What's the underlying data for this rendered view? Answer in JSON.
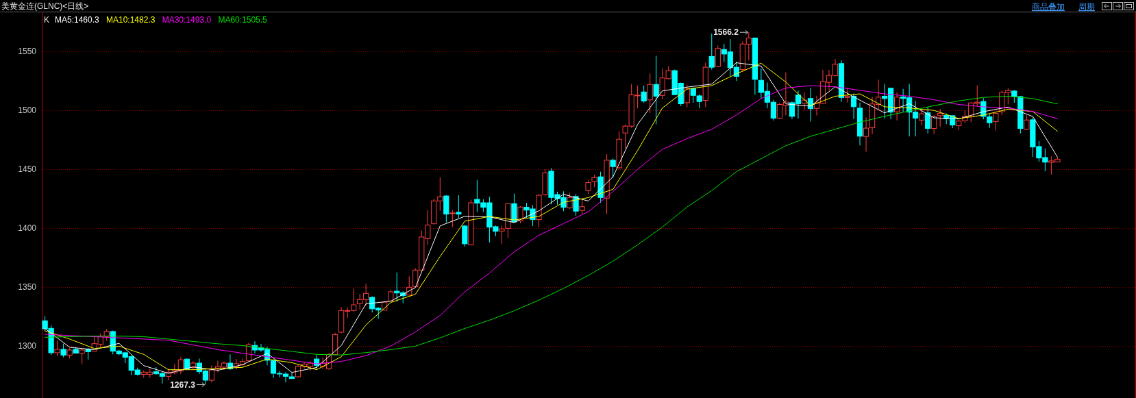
{
  "chart_data": {
    "type": "candlestick",
    "title": "美黄金连(GLNC)<日线>",
    "legend_title": "K",
    "legend": "top left",
    "grid": "y",
    "tick_labels": "y",
    "ylim": [
      1256,
      1582
    ],
    "yticks": [
      1300,
      1350,
      1400,
      1450,
      1500,
      1550
    ],
    "annotations": [
      "商品叠加",
      "周期",
      "1566.2",
      "1267.3"
    ],
    "categories": [
      null,
      null,
      null,
      null,
      null,
      null,
      null,
      null,
      null,
      null,
      null,
      null,
      null,
      null,
      null,
      null,
      null,
      null,
      null,
      null,
      null,
      null,
      null,
      null,
      null,
      null,
      null,
      null,
      null,
      null,
      null,
      null,
      null,
      null,
      null,
      null,
      null,
      null,
      null,
      null,
      null,
      null,
      null,
      null,
      null,
      null,
      null,
      null,
      null,
      null,
      null,
      null,
      null,
      null,
      null,
      null,
      null,
      null,
      null,
      null,
      null,
      null,
      null,
      null,
      null,
      null,
      null,
      null,
      null,
      null,
      null,
      null,
      null,
      null,
      null,
      null,
      null,
      null,
      null,
      null,
      null,
      null,
      null,
      null,
      null,
      null,
      null,
      null,
      null,
      null,
      null,
      null,
      null,
      null,
      null,
      null,
      null,
      null,
      null,
      null,
      null,
      null,
      null,
      null,
      null,
      null,
      null,
      null,
      null,
      null,
      null,
      null,
      null,
      null,
      null,
      null,
      null,
      null,
      null,
      null,
      null,
      null,
      null,
      null,
      null,
      null,
      null,
      null,
      null,
      null,
      null,
      null,
      null,
      null,
      null,
      null,
      null,
      null,
      null,
      null,
      null,
      null,
      null,
      null,
      null,
      null,
      null,
      null,
      null,
      null,
      null,
      null,
      null,
      null,
      null,
      null,
      null,
      null,
      null,
      null,
      null,
      null,
      null,
      null,
      null
    ],
    "ohlc": [
      [
        1321.5,
        1325.4,
        1312.8,
        1314.7
      ],
      [
        1315.1,
        1317.6,
        1292.4,
        1294.4
      ],
      [
        1294.4,
        1304.6,
        1291.5,
        1297.3
      ],
      [
        1297.3,
        1302.1,
        1290.5,
        1292.4
      ],
      [
        1292.4,
        1298.2,
        1289.5,
        1296.7
      ],
      [
        1297.3,
        1298.8,
        1293.8,
        1294.0
      ],
      [
        1294.0,
        1298.2,
        1284.7,
        1296.7
      ],
      [
        1297.3,
        1298.2,
        1288.6,
        1295.3
      ],
      [
        1295.7,
        1308.5,
        1295.7,
        1302.1
      ],
      [
        1301.5,
        1310.8,
        1299.2,
        1308.3
      ],
      [
        1308.3,
        1314.7,
        1304.6,
        1312.4
      ],
      [
        1312.4,
        1313.2,
        1293.0,
        1295.7
      ],
      [
        1295.9,
        1296.9,
        1292.4,
        1293.4
      ],
      [
        1294.4,
        1295.3,
        1285.6,
        1290.5
      ],
      [
        1291.1,
        1292.2,
        1275.6,
        1279.5
      ],
      [
        1279.8,
        1281.8,
        1275.0,
        1276.0
      ],
      [
        1276.0,
        1279.4,
        1273.1,
        1277.9
      ],
      [
        1276.0,
        1280.8,
        1273.1,
        1277.9
      ],
      [
        1278.3,
        1282.2,
        1276.0,
        1276.5
      ],
      [
        1276.9,
        1278.3,
        1268.2,
        1274.4
      ],
      [
        1274.4,
        1280.8,
        1271.1,
        1277.9
      ],
      [
        1277.5,
        1284.7,
        1276.0,
        1279.5
      ],
      [
        1278.9,
        1290.9,
        1276.3,
        1288.4
      ],
      [
        1289.0,
        1289.5,
        1279.8,
        1280.8
      ],
      [
        1281.8,
        1287.2,
        1280.2,
        1285.6
      ],
      [
        1285.6,
        1289.5,
        1276.3,
        1278.3
      ],
      [
        1278.9,
        1279.8,
        1267.3,
        1271.1
      ],
      [
        1271.1,
        1283.7,
        1269.2,
        1279.8
      ],
      [
        1281.4,
        1287.6,
        1277.9,
        1282.8
      ],
      [
        1282.2,
        1287.2,
        1279.8,
        1285.6
      ],
      [
        1285.6,
        1293.0,
        1279.8,
        1280.8
      ],
      [
        1282.8,
        1289.1,
        1280.2,
        1285.1
      ],
      [
        1284.1,
        1289.5,
        1282.8,
        1287.0
      ],
      [
        1287.6,
        1302.7,
        1286.6,
        1301.2
      ],
      [
        1300.6,
        1304.1,
        1293.8,
        1296.7
      ],
      [
        1298.6,
        1301.9,
        1295.3,
        1296.7
      ],
      [
        1297.3,
        1299.6,
        1283.7,
        1288.0
      ],
      [
        1287.6,
        1288.6,
        1273.1,
        1276.9
      ],
      [
        1276.9,
        1278.9,
        1273.5,
        1276.5
      ],
      [
        1276.3,
        1277.9,
        1269.2,
        1274.4
      ],
      [
        1274.0,
        1277.5,
        1272.1,
        1272.5
      ],
      [
        1274.0,
        1284.7,
        1273.1,
        1282.8
      ],
      [
        1282.8,
        1286.6,
        1280.8,
        1284.7
      ],
      [
        1282.8,
        1287.2,
        1279.3,
        1285.6
      ],
      [
        1289.1,
        1292.4,
        1280.8,
        1283.7
      ],
      [
        1282.8,
        1290.5,
        1280.8,
        1285.6
      ],
      [
        1280.8,
        1294.3,
        1279.8,
        1293.0
      ],
      [
        1292.8,
        1311.4,
        1292.0,
        1309.8
      ],
      [
        1311.8,
        1333.1,
        1310.8,
        1330.2
      ],
      [
        1329.6,
        1333.0,
        1324.0,
        1330.2
      ],
      [
        1330.2,
        1349.0,
        1329.2,
        1335.0
      ],
      [
        1336.0,
        1344.1,
        1331.1,
        1339.5
      ],
      [
        1339.5,
        1353.0,
        1334.0,
        1344.7
      ],
      [
        1341.4,
        1342.2,
        1328.6,
        1331.7
      ],
      [
        1332.1,
        1333.1,
        1323.4,
        1330.6
      ],
      [
        1330.6,
        1338.3,
        1330.2,
        1337.3
      ],
      [
        1338.3,
        1348.0,
        1337.9,
        1346.1
      ],
      [
        1346.6,
        1362.5,
        1337.9,
        1345.1
      ],
      [
        1345.3,
        1346.6,
        1336.4,
        1342.8
      ],
      [
        1343.3,
        1359.2,
        1342.8,
        1349.9
      ],
      [
        1350.5,
        1366.0,
        1349.6,
        1364.5
      ],
      [
        1364.5,
        1398.0,
        1364.1,
        1392.6
      ],
      [
        1391.2,
        1415.4,
        1386.0,
        1402.8
      ],
      [
        1403.8,
        1425.1,
        1403.4,
        1423.2
      ],
      [
        1423.2,
        1443.2,
        1414.9,
        1426.7
      ],
      [
        1427.4,
        1428.0,
        1404.8,
        1412.0
      ],
      [
        1412.7,
        1415.4,
        1400.9,
        1413.0
      ],
      [
        1413.5,
        1428.0,
        1408.7,
        1412.0
      ],
      [
        1401.9,
        1402.8,
        1384.4,
        1386.8
      ],
      [
        1386.0,
        1424.2,
        1385.4,
        1421.6
      ],
      [
        1424.5,
        1441.0,
        1413.9,
        1421.3
      ],
      [
        1421.6,
        1424.5,
        1413.9,
        1417.8
      ],
      [
        1421.6,
        1426.7,
        1387.9,
        1400.9
      ],
      [
        1401.3,
        1402.3,
        1393.2,
        1397.4
      ],
      [
        1397.6,
        1402.3,
        1386.8,
        1399.4
      ],
      [
        1399.9,
        1421.3,
        1391.8,
        1420.9
      ],
      [
        1420.9,
        1429.4,
        1404.8,
        1405.4
      ],
      [
        1406.3,
        1418.7,
        1404.2,
        1418.0
      ],
      [
        1417.8,
        1421.6,
        1408.7,
        1415.4
      ],
      [
        1416.4,
        1419.7,
        1401.9,
        1407.3
      ],
      [
        1407.3,
        1429.0,
        1400.9,
        1428.0
      ],
      [
        1428.4,
        1449.9,
        1427.1,
        1447.0
      ],
      [
        1448.4,
        1451.0,
        1420.3,
        1426.1
      ],
      [
        1428.6,
        1431.0,
        1420.0,
        1425.1
      ],
      [
        1426.1,
        1431.3,
        1414.5,
        1417.8
      ],
      [
        1417.4,
        1430.0,
        1416.4,
        1426.1
      ],
      [
        1426.9,
        1429.0,
        1410.6,
        1414.5
      ],
      [
        1415.1,
        1425.1,
        1412.0,
        1418.3
      ],
      [
        1431.9,
        1440.6,
        1429.0,
        1438.7
      ],
      [
        1439.7,
        1445.5,
        1434.8,
        1443.0
      ],
      [
        1443.6,
        1448.0,
        1421.6,
        1426.1
      ],
      [
        1425.5,
        1462.9,
        1412.0,
        1457.7
      ],
      [
        1457.7,
        1459.1,
        1442.6,
        1452.3
      ],
      [
        1451.3,
        1482.3,
        1450.3,
        1475.5
      ],
      [
        1480.8,
        1488.1,
        1467.8,
        1486.6
      ],
      [
        1486.6,
        1522.4,
        1485.2,
        1513.3
      ],
      [
        1512.3,
        1521.1,
        1501.7,
        1512.9
      ],
      [
        1515.6,
        1521.1,
        1506.5,
        1507.9
      ],
      [
        1508.9,
        1531.3,
        1497.8,
        1522.0
      ],
      [
        1522.0,
        1546.3,
        1488.1,
        1512.0
      ],
      [
        1512.7,
        1535.6,
        1509.4,
        1527.5
      ],
      [
        1526.9,
        1537.5,
        1526.3,
        1533.7
      ],
      [
        1533.7,
        1534.6,
        1513.3,
        1513.3
      ],
      [
        1523.0,
        1523.6,
        1503.6,
        1505.6
      ],
      [
        1506.5,
        1521.7,
        1502.7,
        1518.2
      ],
      [
        1518.5,
        1519.1,
        1506.5,
        1512.7
      ],
      [
        1512.3,
        1513.9,
        1501.7,
        1507.5
      ],
      [
        1508.5,
        1540.4,
        1502.7,
        1536.6
      ],
      [
        1545.7,
        1565.1,
        1534.6,
        1536.6
      ],
      [
        1537.2,
        1555.0,
        1536.6,
        1552.5
      ],
      [
        1551.7,
        1556.5,
        1541.0,
        1547.8
      ],
      [
        1549.6,
        1560.4,
        1528.8,
        1536.2
      ],
      [
        1536.6,
        1541.4,
        1524.9,
        1528.8
      ],
      [
        1534.6,
        1558.5,
        1532.7,
        1556.3
      ],
      [
        1556.0,
        1566.2,
        1542.4,
        1561.4
      ],
      [
        1561.4,
        1561.8,
        1513.3,
        1526.3
      ],
      [
        1525.5,
        1535.6,
        1510.0,
        1515.2
      ],
      [
        1516.2,
        1523.6,
        1501.7,
        1506.9
      ],
      [
        1506.9,
        1508.9,
        1491.4,
        1493.4
      ],
      [
        1493.4,
        1506.5,
        1492.6,
        1505.0
      ],
      [
        1504.3,
        1532.2,
        1495.9,
        1507.0
      ],
      [
        1506.5,
        1507.5,
        1492.6,
        1494.9
      ],
      [
        1513.0,
        1516.7,
        1493.0,
        1505.6
      ],
      [
        1506.0,
        1515.3,
        1500.4,
        1508.7
      ],
      [
        1510.1,
        1519.2,
        1490.5,
        1501.4
      ],
      [
        1501.6,
        1512.4,
        1495.7,
        1506.2
      ],
      [
        1506.0,
        1534.3,
        1505.6,
        1524.4
      ],
      [
        1523.8,
        1534.3,
        1517.2,
        1529.6
      ],
      [
        1529.5,
        1543.4,
        1528.9,
        1539.1
      ],
      [
        1539.7,
        1542.4,
        1507.2,
        1510.9
      ],
      [
        1510.9,
        1519.2,
        1506.6,
        1512.0
      ],
      [
        1512.0,
        1514.3,
        1492.6,
        1503.1
      ],
      [
        1501.9,
        1506.6,
        1470.2,
        1478.1
      ],
      [
        1477.9,
        1494.0,
        1464.9,
        1484.9
      ],
      [
        1485.3,
        1511.4,
        1479.8,
        1505.4
      ],
      [
        1505.0,
        1526.0,
        1501.2,
        1511.2
      ],
      [
        1512.0,
        1522.5,
        1493.0,
        1510.1
      ],
      [
        1518.8,
        1519.2,
        1492.6,
        1498.5
      ],
      [
        1498.8,
        1515.3,
        1491.5,
        1511.2
      ],
      [
        1511.4,
        1518.2,
        1498.5,
        1510.1
      ],
      [
        1510.7,
        1522.5,
        1477.9,
        1498.5
      ],
      [
        1498.5,
        1508.1,
        1477.9,
        1493.4
      ],
      [
        1491.7,
        1501.2,
        1487.2,
        1497.1
      ],
      [
        1497.9,
        1503.1,
        1480.4,
        1484.7
      ],
      [
        1484.7,
        1495.9,
        1479.8,
        1494.6
      ],
      [
        1495.5,
        1501.2,
        1486.2,
        1497.5
      ],
      [
        1495.7,
        1497.3,
        1488.2,
        1493.0
      ],
      [
        1495.5,
        1495.9,
        1484.9,
        1487.6
      ],
      [
        1487.0,
        1492.1,
        1483.3,
        1490.9
      ],
      [
        1491.1,
        1499.8,
        1489.5,
        1495.1
      ],
      [
        1494.5,
        1506.9,
        1490.0,
        1506.3
      ],
      [
        1505.9,
        1521.1,
        1503.6,
        1506.9
      ],
      [
        1507.5,
        1510.4,
        1492.4,
        1494.9
      ],
      [
        1494.5,
        1496.8,
        1485.2,
        1489.5
      ],
      [
        1490.4,
        1498.4,
        1482.9,
        1497.4
      ],
      [
        1498.8,
        1516.8,
        1495.9,
        1515.2
      ],
      [
        1515.0,
        1519.1,
        1505.0,
        1516.8
      ],
      [
        1516.4,
        1517.2,
        1506.5,
        1511.7
      ],
      [
        1511.7,
        1512.3,
        1480.4,
        1484.6
      ],
      [
        1484.0,
        1495.9,
        1483.3,
        1491.8
      ],
      [
        1492.0,
        1493.9,
        1460.6,
        1468.9
      ],
      [
        1469.3,
        1474.0,
        1456.5,
        1459.6
      ],
      [
        1460.0,
        1467.8,
        1448.4,
        1456.1
      ],
      [
        1455.9,
        1461.0,
        1445.5,
        1457.1
      ],
      [
        1456.3,
        1460.0,
        1456.1,
        1458.6
      ]
    ],
    "series": [
      {
        "name": "MA5:1460.3",
        "color": "#ffffff",
        "type": "line",
        "values": [
          1315,
          null,
          null,
          null,
          1299,
          null,
          null,
          null,
          1297,
          null,
          null,
          null,
          1302.4,
          null,
          null,
          null,
          1283.5,
          null,
          null,
          null,
          1276.9,
          null,
          null,
          null,
          1282.4,
          null,
          null,
          null,
          1279.5,
          null,
          null,
          null,
          1284.3,
          null,
          null,
          null,
          1293.9,
          null,
          null,
          null,
          1277.7,
          null,
          null,
          null,
          1281.9,
          null,
          null,
          null,
          1300.5,
          null,
          null,
          null,
          1335.9,
          null,
          null,
          null,
          1338.1,
          null,
          null,
          null,
          1349.7,
          null,
          null,
          null,
          1402,
          null,
          null,
          null,
          1410.1,
          null,
          null,
          null,
          1409.7,
          null,
          null,
          null,
          1404.8,
          null,
          null,
          null,
          1414.8,
          null,
          null,
          null,
          1428.8,
          null,
          null,
          null,
          1423.1,
          null,
          null,
          null,
          1443.6,
          null,
          null,
          null,
          1488.1,
          null,
          null,
          null,
          1516.5,
          null,
          null,
          null,
          1519.7,
          null,
          null,
          null,
          1522.3,
          null,
          null,
          null,
          1540.4,
          null,
          null,
          null,
          1537.6,
          null,
          null,
          null,
          1505.5,
          null,
          null,
          null,
          1503.5,
          null,
          null,
          null,
          1520.1,
          null,
          null,
          null,
          1508.6,
          null,
          null,
          null,
          1497.9,
          null,
          null,
          null,
          1505.7,
          null,
          null,
          null,
          1493.7,
          null,
          null,
          null,
          1492.7,
          null,
          null,
          null,
          1498.9,
          null,
          null,
          null,
          1502.8,
          null,
          null,
          null,
          1494.8,
          null,
          null,
          null,
          1460.3
        ]
      },
      {
        "name": "MA10:1482.3",
        "color": "#ffff00",
        "type": "line",
        "values": [
          1313,
          null,
          null,
          null,
          1306,
          null,
          null,
          null,
          1298,
          null,
          null,
          null,
          1300,
          null,
          null,
          null,
          1293,
          null,
          null,
          null,
          1280,
          null,
          null,
          null,
          1280,
          null,
          null,
          null,
          1281,
          null,
          null,
          null,
          1282,
          null,
          null,
          null,
          1289,
          null,
          null,
          null,
          1286,
          null,
          null,
          null,
          1280,
          null,
          null,
          null,
          1291,
          null,
          null,
          null,
          1318,
          null,
          null,
          null,
          1337,
          null,
          null,
          null,
          1344,
          null,
          null,
          null,
          1376,
          null,
          null,
          null,
          1406,
          null,
          null,
          null,
          1410,
          null,
          null,
          null,
          1407,
          null,
          null,
          null,
          1410,
          null,
          null,
          null,
          1422,
          null,
          null,
          null,
          1426,
          null,
          null,
          null,
          1433,
          null,
          null,
          null,
          1466,
          null,
          null,
          null,
          1502,
          null,
          null,
          null,
          1518,
          null,
          null,
          null,
          1521,
          null,
          null,
          null,
          1531,
          null,
          null,
          null,
          1540,
          null,
          null,
          null,
          1524,
          null,
          null,
          null,
          1504,
          null,
          null,
          null,
          1512,
          null,
          null,
          null,
          1514,
          null,
          null,
          null,
          1503,
          null,
          null,
          null,
          1502,
          null,
          null,
          null,
          1500,
          null,
          null,
          null,
          1493,
          null,
          null,
          null,
          1496,
          null,
          null,
          null,
          1501,
          null,
          null,
          null,
          1499,
          null,
          null,
          null,
          1482.3
        ]
      },
      {
        "name": "MA30:1493.0",
        "color": "#ff00ff",
        "type": "line",
        "values": [
          1310,
          null,
          null,
          null,
          1309,
          null,
          null,
          null,
          1308,
          null,
          null,
          null,
          1307,
          null,
          null,
          null,
          1306,
          null,
          null,
          null,
          1305,
          null,
          null,
          null,
          1301,
          null,
          null,
          null,
          1297,
          null,
          null,
          null,
          1294,
          null,
          null,
          null,
          1291,
          null,
          null,
          null,
          1288,
          null,
          null,
          null,
          1285,
          null,
          null,
          null,
          1287,
          null,
          null,
          null,
          1292,
          null,
          null,
          null,
          1300,
          null,
          null,
          null,
          1312,
          null,
          null,
          null,
          1326,
          null,
          null,
          null,
          1346,
          null,
          null,
          null,
          1362,
          null,
          null,
          null,
          1380,
          null,
          null,
          null,
          1394,
          null,
          null,
          null,
          1404,
          null,
          null,
          null,
          1414,
          null,
          null,
          null,
          1431,
          null,
          null,
          null,
          1450,
          null,
          null,
          null,
          1467,
          null,
          null,
          null,
          1476,
          null,
          null,
          null,
          1484,
          null,
          null,
          null,
          1496,
          null,
          null,
          null,
          1510,
          null,
          null,
          null,
          1519,
          null,
          null,
          null,
          1521,
          null,
          null,
          null,
          1520,
          null,
          null,
          null,
          1517,
          null,
          null,
          null,
          1514,
          null,
          null,
          null,
          1512,
          null,
          null,
          null,
          1509,
          null,
          null,
          null,
          1505,
          null,
          null,
          null,
          1503,
          null,
          null,
          null,
          1502,
          null,
          null,
          null,
          1499,
          null,
          null,
          null,
          1493.0
        ]
      },
      {
        "name": "MA60:1505.5",
        "color": "#00e000",
        "type": "line",
        "values": [
          1307.5,
          null,
          null,
          null,
          1308,
          null,
          null,
          null,
          1308.5,
          null,
          null,
          null,
          1308.5,
          null,
          null,
          null,
          1308,
          null,
          null,
          null,
          1306,
          null,
          null,
          null,
          1304,
          null,
          null,
          null,
          1302,
          null,
          null,
          null,
          1300.5,
          null,
          null,
          null,
          1298,
          null,
          null,
          null,
          1295.5,
          null,
          null,
          null,
          1293,
          null,
          null,
          null,
          1292.5,
          null,
          null,
          null,
          1294.5,
          null,
          null,
          null,
          1297,
          null,
          null,
          null,
          1300,
          null,
          null,
          null,
          1307,
          null,
          null,
          null,
          1315,
          null,
          null,
          null,
          1322,
          null,
          null,
          null,
          1330,
          null,
          null,
          null,
          1339,
          null,
          null,
          null,
          1349,
          null,
          null,
          null,
          1360,
          null,
          null,
          null,
          1372,
          null,
          null,
          null,
          1386,
          null,
          null,
          null,
          1401,
          null,
          null,
          null,
          1418,
          null,
          null,
          null,
          1432,
          null,
          null,
          null,
          1448,
          null,
          null,
          null,
          1459,
          null,
          null,
          null,
          1470,
          null,
          null,
          null,
          1478,
          null,
          null,
          null,
          1484,
          null,
          null,
          null,
          1490,
          null,
          null,
          null,
          1495,
          null,
          null,
          null,
          1499.5,
          null,
          null,
          null,
          1504,
          null,
          null,
          null,
          1508,
          null,
          null,
          null,
          1511,
          null,
          null,
          null,
          1512,
          null,
          null,
          null,
          1510,
          null,
          null,
          null,
          1505.5
        ]
      }
    ]
  }
}
